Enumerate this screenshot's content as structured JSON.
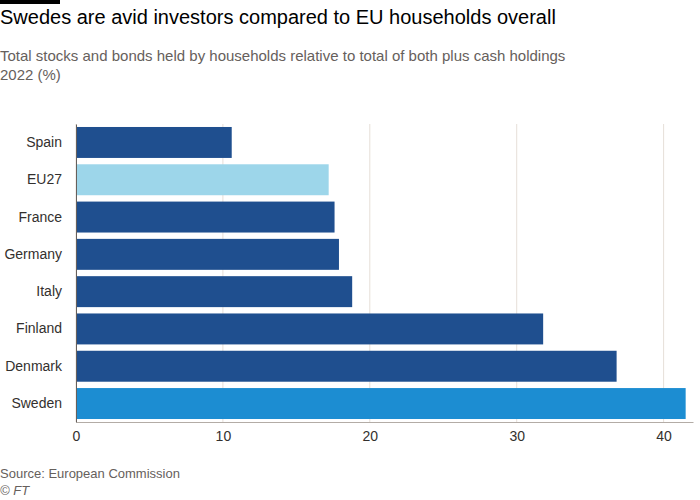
{
  "chart_data": {
    "type": "bar",
    "orientation": "horizontal",
    "title": "Swedes are avid investors compared to EU households overall",
    "subtitle": [
      "Total stocks and bonds held by households relative to total of both plus cash holdings",
      "2022 (%)"
    ],
    "categories": [
      "Spain",
      "EU27",
      "France",
      "Germany",
      "Italy",
      "Finland",
      "Denmark",
      "Sweden"
    ],
    "values": [
      10.6,
      17.2,
      17.6,
      17.9,
      18.8,
      31.8,
      36.8,
      41.5
    ],
    "colors": [
      "#1f4f8f",
      "#9dd6ea",
      "#1f4f8f",
      "#1f4f8f",
      "#1f4f8f",
      "#1f4f8f",
      "#1f4f8f",
      "#1c8dd2"
    ],
    "xlim": [
      0,
      42
    ],
    "xticks": [
      0,
      10,
      20,
      30,
      40
    ],
    "grid": true,
    "source": "Source: European Commission",
    "credit": "© FT"
  }
}
